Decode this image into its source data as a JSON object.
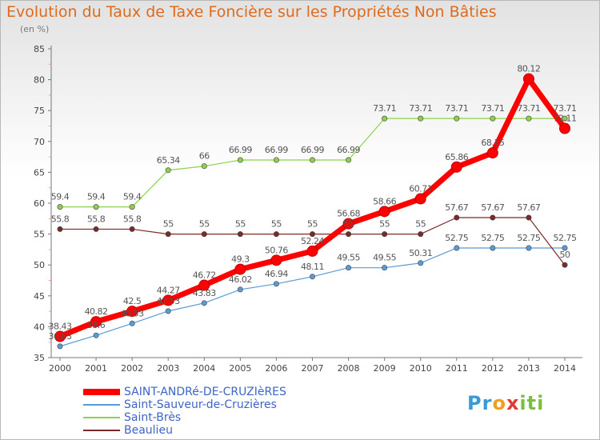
{
  "title": "Evolution du Taux de Taxe Foncière sur les Propriétés Non Bâties",
  "unit_label": "(en %)",
  "logo": {
    "parts": [
      {
        "text": "Pr",
        "color": "#3a9ad9"
      },
      {
        "text": "o",
        "color": "#f0a020"
      },
      {
        "text": "x",
        "color": "#e53935"
      },
      {
        "text": "iti",
        "color": "#7cbf3f"
      }
    ]
  },
  "chart_data": {
    "type": "line",
    "title": "Evolution du Taux de Taxe Foncière sur les Propriétés Non Bâties",
    "ylabel": "(en %)",
    "x": [
      "2000",
      "2001",
      "2002",
      "2003",
      "2004",
      "2005",
      "2006",
      "2007",
      "2008",
      "2009",
      "2010",
      "2011",
      "2012",
      "2013",
      "2014"
    ],
    "ylim": [
      35,
      85
    ],
    "yticks": [
      35,
      40,
      45,
      50,
      55,
      60,
      65,
      70,
      75,
      80,
      85
    ],
    "grid": false,
    "legend_position": "bottom-left",
    "series": [
      {
        "name": "SAINT-ANDRé-DE-CRUZIèRES",
        "color": "#ff0000",
        "style": "thick",
        "values": [
          38.43,
          40.82,
          42.5,
          44.27,
          46.72,
          49.3,
          50.76,
          52.24,
          56.68,
          58.66,
          60.71,
          65.86,
          68.15,
          80.12,
          72.11
        ],
        "labels": [
          "38.43",
          "40.82",
          "42.5",
          "44.27",
          "46.72",
          "49.3",
          "50.76",
          "52.24",
          "56.68",
          "58.66",
          "60.71",
          "65.86",
          "68.15",
          "80.12",
          "72.11"
        ]
      },
      {
        "name": "Saint-Sauveur-de-Cruzières",
        "color": "#5b9bd5",
        "style": "thin",
        "values": [
          36.83,
          38.6,
          40.53,
          42.53,
          43.83,
          46.02,
          46.94,
          48.11,
          49.55,
          49.55,
          50.31,
          52.75,
          52.75,
          52.75,
          52.75
        ],
        "labels": [
          "36.83",
          "38.6",
          "40.53",
          "42.53",
          "43.83",
          "46.02",
          "46.94",
          "48.11",
          "49.55",
          "49.55",
          "50.31",
          "52.75",
          "52.75",
          "52.75",
          "52.75"
        ]
      },
      {
        "name": "Saint-Brès",
        "color": "#8ed04a",
        "style": "thin",
        "values": [
          59.4,
          59.4,
          59.4,
          65.34,
          66,
          66.99,
          66.99,
          66.99,
          66.99,
          73.71,
          73.71,
          73.71,
          73.71,
          73.71,
          73.71
        ],
        "labels": [
          "59.4",
          "59.4",
          "59.4",
          "65.34",
          "66",
          "66.99",
          "66.99",
          "66.99",
          "66.99",
          "73.71",
          "73.71",
          "73.71",
          "73.71",
          "73.71",
          "73.71"
        ]
      },
      {
        "name": "Beaulieu",
        "color": "#7a2a2a",
        "style": "thin",
        "values": [
          55.8,
          55.8,
          55.8,
          55,
          55,
          55,
          55,
          55,
          55,
          55,
          55,
          57.67,
          57.67,
          57.67,
          50
        ],
        "labels": [
          "55.8",
          "55.8",
          "55.8",
          "55",
          "55",
          "55",
          "55",
          "55",
          "55",
          "55",
          "55",
          "57.67",
          "57.67",
          "57.67",
          "50"
        ]
      }
    ]
  }
}
